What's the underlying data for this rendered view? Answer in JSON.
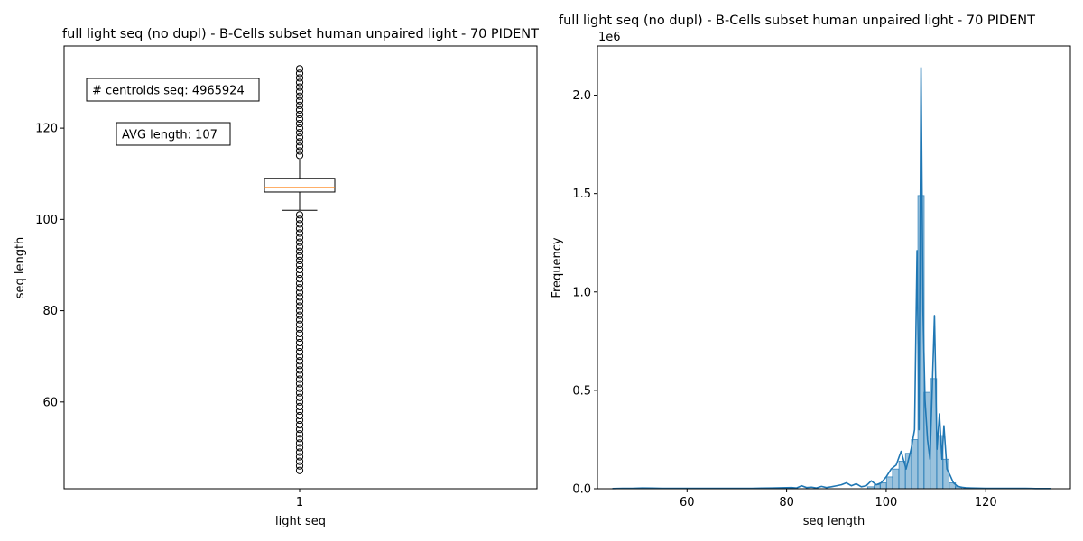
{
  "figure": {
    "background": "#ffffff"
  },
  "chart_data": [
    {
      "type": "box",
      "title": "full light seq (no dupl) - B-Cells subset human unpaired light - 70 PIDENT",
      "xlabel": "light seq",
      "ylabel": "seq length",
      "categories": [
        "1"
      ],
      "ylim": [
        41,
        138
      ],
      "yticks": [
        60,
        80,
        100,
        120
      ],
      "box": {
        "q1": 106,
        "median": 107,
        "q3": 109,
        "whisker_low": 102,
        "whisker_high": 113,
        "outliers_low": [
          45,
          101
        ],
        "outliers_high": [
          114,
          133
        ],
        "median_color": "#ff7f0e",
        "box_color": "#000000"
      },
      "annotations": [
        "# centroids seq: 4965924",
        "AVG length: 107"
      ],
      "grid": false
    },
    {
      "type": "bar",
      "title": "full light seq (no dupl) - B-Cells subset human unpaired light - 70 PIDENT",
      "xlabel": "seq length",
      "ylabel": "Frequency",
      "scale_label": "1e6",
      "xlim": [
        42,
        137
      ],
      "ylim": [
        0,
        2.25
      ],
      "xticks": [
        60,
        80,
        100,
        120
      ],
      "yticks": [
        0.0,
        0.5,
        1.0,
        1.5,
        2.0
      ],
      "ytick_labels": [
        "0.0",
        "0.5",
        "1.0",
        "1.5",
        "2.0"
      ],
      "series_color": "#1f77b4",
      "bin_width": 1.26,
      "x": [
        45,
        47,
        49,
        51,
        53,
        55,
        57,
        59,
        61,
        63,
        65,
        67,
        69,
        71,
        73,
        75,
        77,
        79,
        81,
        82,
        83,
        84,
        85,
        86,
        87,
        88,
        89,
        90,
        91,
        92,
        93,
        94,
        95,
        96,
        97,
        98,
        99,
        100,
        101,
        102,
        103,
        104,
        105,
        105.7,
        106.2,
        106.6,
        107,
        107.4,
        107.8,
        108.3,
        108.8,
        109.3,
        109.7,
        110.2,
        110.7,
        111.2,
        111.6,
        112.2,
        112.8,
        113.5,
        114.2,
        115,
        116,
        117,
        118,
        120,
        122,
        124,
        126,
        128,
        130,
        133
      ],
      "values": [
        0.001,
        0.002,
        0.002,
        0.004,
        0.003,
        0.002,
        0.002,
        0.002,
        0.002,
        0.002,
        0.002,
        0.002,
        0.002,
        0.002,
        0.002,
        0.003,
        0.004,
        0.005,
        0.006,
        0.004,
        0.015,
        0.006,
        0.008,
        0.004,
        0.012,
        0.006,
        0.01,
        0.015,
        0.02,
        0.03,
        0.015,
        0.025,
        0.01,
        0.015,
        0.04,
        0.02,
        0.03,
        0.06,
        0.1,
        0.12,
        0.19,
        0.1,
        0.2,
        0.3,
        1.21,
        0.3,
        2.14,
        0.9,
        0.45,
        0.25,
        0.15,
        0.55,
        0.88,
        0.2,
        0.38,
        0.15,
        0.32,
        0.1,
        0.07,
        0.03,
        0.015,
        0.008,
        0.005,
        0.004,
        0.003,
        0.002,
        0.002,
        0.002,
        0.002,
        0.002,
        0.001,
        0.001
      ],
      "bars": [
        {
          "x": 96.9,
          "value": 0.01
        },
        {
          "x": 98.2,
          "value": 0.02
        },
        {
          "x": 99.4,
          "value": 0.03
        },
        {
          "x": 100.7,
          "value": 0.06
        },
        {
          "x": 101.9,
          "value": 0.1
        },
        {
          "x": 103.2,
          "value": 0.14
        },
        {
          "x": 104.5,
          "value": 0.18
        },
        {
          "x": 105.7,
          "value": 0.25
        },
        {
          "x": 107.0,
          "value": 1.49
        },
        {
          "x": 108.2,
          "value": 0.49
        },
        {
          "x": 109.5,
          "value": 0.56
        },
        {
          "x": 110.8,
          "value": 0.27
        },
        {
          "x": 112.0,
          "value": 0.15
        },
        {
          "x": 113.3,
          "value": 0.03
        },
        {
          "x": 114.5,
          "value": 0.01
        }
      ],
      "grid": false
    }
  ]
}
